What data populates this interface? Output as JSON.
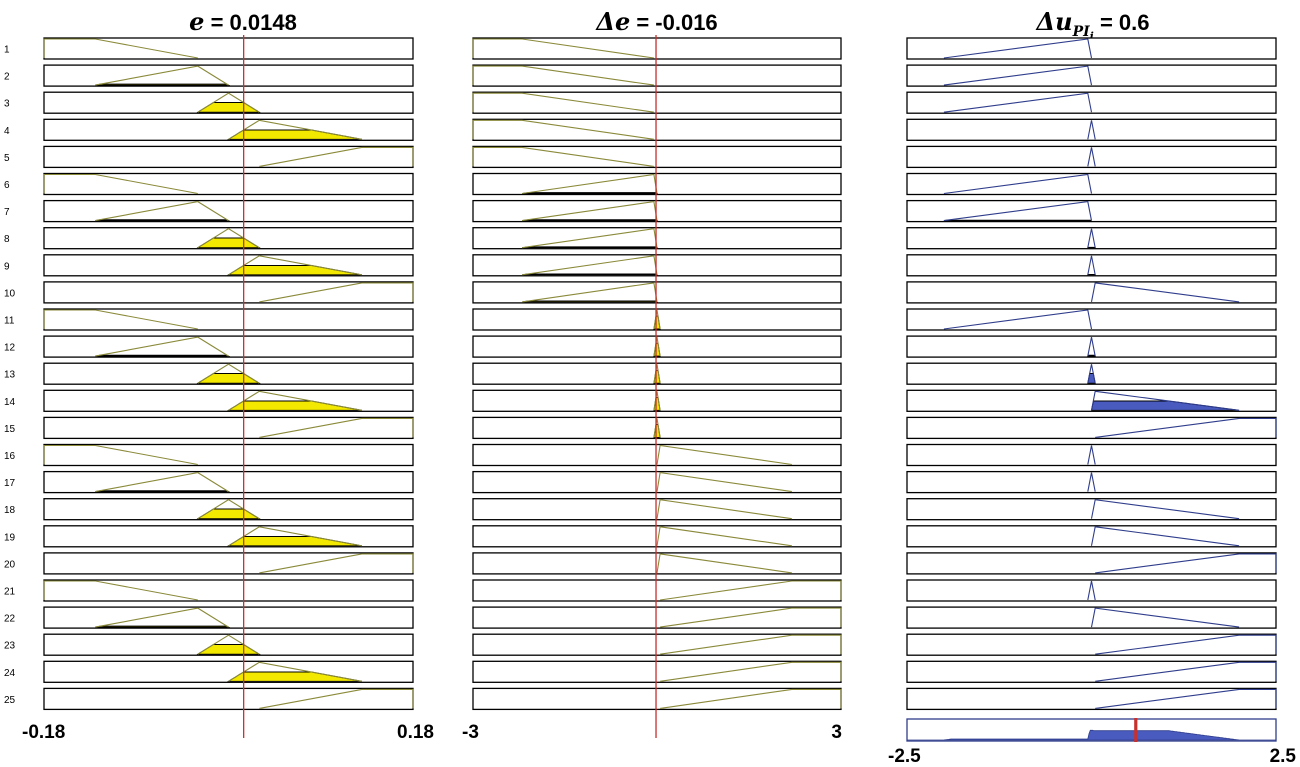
{
  "chart_data": {
    "type": "fuzzy-rule-viewer",
    "rule_numbers": [
      "1",
      "2",
      "3",
      "4",
      "5",
      "6",
      "7",
      "8",
      "9",
      "10",
      "11",
      "12",
      "13",
      "14",
      "15",
      "16",
      "17",
      "18",
      "19",
      "20",
      "21",
      "22",
      "23",
      "24",
      "25"
    ],
    "inputs": [
      {
        "var_symbol": "e",
        "value_text": " = 0.0148",
        "value": 0.0148,
        "range": [
          -0.18,
          0.18
        ],
        "range_labels": [
          "-0.18",
          "0.18"
        ],
        "membership_functions": [
          [
            -0.18,
            -0.18,
            -0.13,
            -0.03
          ],
          [
            -0.13,
            -0.03,
            0.0
          ],
          [
            -0.03,
            0.0,
            0.03
          ],
          [
            -0.0,
            0.03,
            0.13
          ],
          [
            0.03,
            0.13,
            0.18,
            0.18
          ]
        ],
        "rule_mf": [
          0,
          1,
          2,
          3,
          4,
          0,
          1,
          2,
          3,
          4,
          0,
          1,
          2,
          3,
          4,
          0,
          1,
          2,
          3,
          4,
          0,
          1,
          2,
          3,
          4
        ],
        "rule_degree": [
          0,
          0.05,
          0.51,
          0.49,
          0,
          0,
          0.05,
          0.51,
          0.49,
          0,
          0,
          0.05,
          0.51,
          0.49,
          0,
          0,
          0.05,
          0.51,
          0.49,
          0,
          0,
          0.05,
          0.51,
          0.49,
          0
        ]
      },
      {
        "var_symbol": "Δe",
        "value_text": " = -0.016",
        "value": -0.016,
        "range": [
          -3,
          3
        ],
        "range_labels": [
          "-3",
          "3"
        ],
        "membership_functions": [
          [
            -3,
            -3,
            -2.2,
            -0.05
          ],
          [
            -2.2,
            -0.05,
            0
          ],
          [
            -0.05,
            0,
            0.05
          ],
          [
            0,
            0.05,
            2.2
          ],
          [
            0.05,
            2.2,
            3,
            3
          ]
        ],
        "rule_mf": [
          0,
          0,
          0,
          0,
          0,
          1,
          1,
          1,
          1,
          1,
          2,
          2,
          2,
          2,
          2,
          3,
          3,
          3,
          3,
          3,
          4,
          4,
          4,
          4,
          4
        ],
        "rule_degree": [
          0,
          0,
          0,
          0,
          0,
          0.05,
          0.05,
          0.05,
          0.05,
          0.05,
          0.68,
          0.68,
          0.68,
          0.68,
          0.68,
          0,
          0,
          0,
          0,
          0,
          0,
          0,
          0,
          0,
          0
        ]
      }
    ],
    "output": {
      "var_symbol": "Δu",
      "subscript": "PI",
      "sub_subscript": "i",
      "value_text": " = 0.6",
      "value": 0.6,
      "range": [
        -2.5,
        2.5
      ],
      "range_labels": [
        "-2.5",
        "2.5"
      ],
      "membership_functions": [
        [
          -2.5,
          -2.5,
          -2.0,
          -0.05
        ],
        [
          -2.0,
          -0.05,
          0
        ],
        [
          -0.05,
          0,
          0.05
        ],
        [
          0,
          0.05,
          2.0
        ],
        [
          0.05,
          2.0,
          2.5,
          2.5
        ]
      ],
      "rule_mf": [
        1,
        1,
        1,
        2,
        2,
        1,
        1,
        2,
        2,
        3,
        1,
        2,
        2,
        3,
        4,
        2,
        2,
        3,
        3,
        4,
        2,
        3,
        4,
        4,
        4
      ],
      "rule_degree": [
        0,
        0,
        0,
        0,
        0,
        0,
        0.02,
        0.02,
        0.02,
        0,
        0,
        0.05,
        0.51,
        0.49,
        0,
        0,
        0,
        0,
        0,
        0,
        0,
        0,
        0,
        0,
        0
      ],
      "aggregate_levels": [
        0.05,
        0.51,
        0.49
      ]
    }
  },
  "colors": {
    "input_mf_line": "#8a8a3a",
    "input_fill": "#f2e800",
    "output_mf_line": "#2f3d8c",
    "output_fill": "#4a5bbf",
    "value_line": "#c8302c",
    "box_border": "#000000"
  }
}
